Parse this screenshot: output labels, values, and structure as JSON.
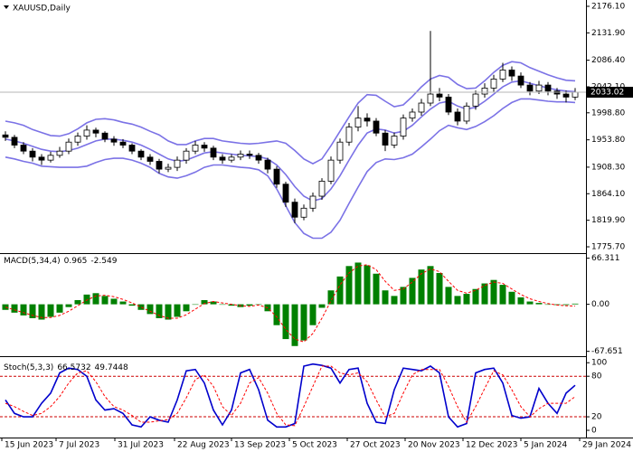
{
  "chart_data": [
    {
      "type": "candlestick",
      "title": "XAUUSD,Daily",
      "x": [
        0,
        1,
        2,
        3,
        4,
        5,
        6,
        7,
        8,
        9,
        10,
        11,
        12,
        13,
        14,
        15,
        16,
        17,
        18,
        19,
        20,
        21,
        22,
        23,
        24,
        25,
        26,
        27,
        28,
        29,
        30,
        31,
        32,
        33,
        34,
        35,
        36,
        37,
        38,
        39,
        40,
        41,
        42,
        43,
        44,
        45,
        46,
        47,
        48,
        49,
        50,
        51,
        52,
        53,
        54,
        55,
        56,
        57,
        58,
        59,
        60,
        61,
        62,
        63
      ],
      "xlim": [
        -0.6,
        64.2
      ],
      "open": [
        1962,
        1958,
        1945,
        1935,
        1925,
        1920,
        1928,
        1935,
        1950,
        1960,
        1970,
        1965,
        1955,
        1950,
        1945,
        1935,
        1925,
        1918,
        1905,
        1908,
        1920,
        1935,
        1945,
        1940,
        1925,
        1920,
        1925,
        1930,
        1928,
        1920,
        1905,
        1880,
        1850,
        1825,
        1840,
        1860,
        1885,
        1920,
        1950,
        1975,
        1990,
        1985,
        1965,
        1945,
        1960,
        1990,
        2000,
        2015,
        2030,
        2025,
        2000,
        1985,
        2010,
        2030,
        2040,
        2055,
        2070,
        2060,
        2045,
        2035,
        2045,
        2035,
        2030,
        2025
      ],
      "high": [
        1968,
        1962,
        1950,
        1940,
        1930,
        1934,
        1942,
        1956,
        1966,
        1978,
        1974,
        1968,
        1960,
        1955,
        1948,
        1938,
        1930,
        1922,
        1914,
        1926,
        1940,
        1952,
        1950,
        1944,
        1930,
        1930,
        1936,
        1936,
        1932,
        1924,
        1910,
        1884,
        1856,
        1846,
        1866,
        1890,
        1926,
        1956,
        1982,
        2010,
        1998,
        1990,
        1970,
        1966,
        1996,
        2006,
        2022,
        2135,
        2040,
        2030,
        2006,
        2016,
        2036,
        2048,
        2062,
        2082,
        2076,
        2066,
        2050,
        2052,
        2050,
        2040,
        2036,
        2040
      ],
      "low": [
        1952,
        1940,
        1930,
        1918,
        1912,
        1916,
        1924,
        1930,
        1944,
        1954,
        1958,
        1950,
        1944,
        1940,
        1930,
        1920,
        1912,
        1898,
        1900,
        1902,
        1914,
        1930,
        1934,
        1920,
        1914,
        1916,
        1920,
        1922,
        1914,
        1898,
        1874,
        1842,
        1815,
        1820,
        1834,
        1854,
        1880,
        1914,
        1944,
        1968,
        1976,
        1960,
        1935,
        1940,
        1954,
        1984,
        1994,
        2010,
        2018,
        1995,
        1978,
        1980,
        2004,
        2024,
        2034,
        2050,
        2052,
        2040,
        2028,
        2030,
        2028,
        2022,
        2016,
        2020
      ],
      "close": [
        1958,
        1945,
        1935,
        1925,
        1920,
        1928,
        1935,
        1950,
        1960,
        1970,
        1965,
        1955,
        1950,
        1945,
        1935,
        1925,
        1918,
        1905,
        1908,
        1920,
        1935,
        1945,
        1940,
        1925,
        1920,
        1925,
        1930,
        1928,
        1920,
        1905,
        1880,
        1850,
        1825,
        1840,
        1860,
        1885,
        1920,
        1950,
        1975,
        1990,
        1985,
        1965,
        1945,
        1960,
        1990,
        2000,
        2015,
        2030,
        2025,
        2000,
        1985,
        2010,
        2030,
        2040,
        2055,
        2070,
        2060,
        2045,
        2035,
        2045,
        2035,
        2030,
        2025,
        2033.02
      ],
      "up_color": "#ffffff",
      "down_color": "#000000",
      "price_line_color": "#b4b4b4",
      "series": [
        {
          "color": "#7b72e6",
          "values": [
            1985,
            1982,
            1978,
            1971,
            1966,
            1961,
            1960,
            1964,
            1972,
            1982,
            1988,
            1989,
            1987,
            1983,
            1980,
            1975,
            1968,
            1962,
            1952,
            1946,
            1946,
            1952,
            1956,
            1956,
            1952,
            1950,
            1948,
            1947,
            1948,
            1950,
            1952,
            1948,
            1936,
            1922,
            1914,
            1922,
            1944,
            1968,
            1992,
            2015,
            2029,
            2028,
            2018,
            2009,
            2012,
            2026,
            2042,
            2055,
            2061,
            2058,
            2046,
            2039,
            2040,
            2052,
            2066,
            2078,
            2084,
            2082,
            2074,
            2068,
            2062,
            2057,
            2053,
            2052
          ]
        },
        {
          "color": "#7b72e6",
          "values": [
            1955,
            1952,
            1948,
            1943,
            1938,
            1935,
            1934,
            1936,
            1940,
            1946,
            1952,
            1955,
            1955,
            1953,
            1950,
            1945,
            1938,
            1930,
            1922,
            1918,
            1920,
            1926,
            1932,
            1934,
            1932,
            1930,
            1928,
            1927,
            1926,
            1922,
            1912,
            1896,
            1876,
            1860,
            1852,
            1856,
            1872,
            1894,
            1920,
            1945,
            1965,
            1972,
            1970,
            1965,
            1968,
            1978,
            1992,
            2005,
            2015,
            2018,
            2010,
            2005,
            2008,
            2018,
            2030,
            2042,
            2050,
            2052,
            2048,
            2044,
            2040,
            2037,
            2035,
            2034
          ]
        },
        {
          "color": "#7b72e6",
          "values": [
            1925,
            1922,
            1918,
            1915,
            1910,
            1909,
            1908,
            1908,
            1908,
            1910,
            1916,
            1921,
            1923,
            1923,
            1920,
            1915,
            1908,
            1898,
            1892,
            1890,
            1894,
            1900,
            1908,
            1912,
            1912,
            1910,
            1908,
            1907,
            1904,
            1894,
            1872,
            1844,
            1816,
            1798,
            1790,
            1790,
            1800,
            1820,
            1848,
            1875,
            1901,
            1916,
            1922,
            1921,
            1924,
            1930,
            1942,
            1955,
            1969,
            1978,
            1974,
            1971,
            1976,
            1984,
            1994,
            2006,
            2016,
            2022,
            2022,
            2020,
            2018,
            2017,
            2017,
            2016
          ]
        }
      ],
      "ylim": [
        1768.2,
        2183.6
      ],
      "yticks": [
        {
          "value": 2176.1,
          "label": "2176.10"
        },
        {
          "value": 2131.9,
          "label": "2131.90"
        },
        {
          "value": 2086.4,
          "label": "2086.40"
        },
        {
          "value": 2042.1,
          "label": "2042.10"
        },
        {
          "value": 1998.8,
          "label": "1998.80"
        },
        {
          "value": 1953.8,
          "label": "1953.80"
        },
        {
          "value": 1908.3,
          "label": "1908.30"
        },
        {
          "value": 1864.1,
          "label": "1864.10"
        },
        {
          "value": 1819.9,
          "label": "1819.90"
        },
        {
          "value": 1775.7,
          "label": "1775.70"
        }
      ]
    },
    {
      "type": "bar",
      "title": "MACD(5,34,4)",
      "color": "#008000",
      "values": [
        -8,
        -12,
        -16,
        -20,
        -22,
        -18,
        -12,
        -4,
        6,
        14,
        16,
        12,
        8,
        4,
        -2,
        -8,
        -14,
        -20,
        -22,
        -18,
        -10,
        0,
        6,
        4,
        0,
        -2,
        -4,
        -2,
        0,
        -10,
        -30,
        -50,
        -60,
        -52,
        -30,
        -5,
        20,
        40,
        55,
        60,
        56,
        44,
        20,
        12,
        25,
        38,
        50,
        55,
        45,
        25,
        12,
        15,
        22,
        30,
        35,
        28,
        18,
        10,
        4,
        2,
        0,
        -1,
        -1,
        0.965
      ],
      "signal": {
        "color": "#ff0000",
        "dash": true,
        "values": [
          -4,
          -8,
          -12,
          -16,
          -19,
          -19,
          -16,
          -10,
          -2,
          6,
          12,
          13,
          11,
          7,
          2,
          -4,
          -10,
          -16,
          -20,
          -20,
          -15,
          -7,
          1,
          4,
          2,
          0,
          -2,
          -3,
          -1,
          -5,
          -18,
          -36,
          -50,
          -54,
          -42,
          -20,
          5,
          28,
          45,
          55,
          57,
          50,
          33,
          20,
          22,
          32,
          44,
          51,
          47,
          33,
          20,
          16,
          20,
          27,
          32,
          30,
          22,
          14,
          8,
          4,
          1,
          -1,
          -2,
          -2.549
        ]
      },
      "ylim": [
        -72,
        71
      ],
      "yticks": [
        66.311,
        {
          "value": 0,
          "label": "0.00"
        },
        -67.651
      ]
    },
    {
      "type": "line",
      "title": "Stoch(5,3,3)",
      "series": [
        {
          "color": "#0000cc",
          "values": [
            45,
            25,
            20,
            20,
            40,
            55,
            85,
            92,
            90,
            80,
            45,
            30,
            32,
            25,
            8,
            5,
            20,
            15,
            12,
            45,
            88,
            90,
            70,
            30,
            8,
            30,
            85,
            90,
            60,
            15,
            5,
            5,
            10,
            95,
            98,
            96,
            92,
            70,
            90,
            92,
            40,
            12,
            10,
            60,
            92,
            90,
            88,
            95,
            85,
            20,
            5,
            10,
            85,
            90,
            92,
            70,
            22,
            18,
            20,
            62,
            40,
            25,
            55,
            66.5732
          ]
        },
        {
          "color": "#ff0000",
          "dash": true,
          "values": [
            40,
            35,
            28,
            22,
            25,
            35,
            50,
            70,
            85,
            88,
            72,
            50,
            35,
            30,
            22,
            12,
            12,
            14,
            16,
            25,
            48,
            75,
            82,
            65,
            35,
            22,
            40,
            70,
            78,
            55,
            25,
            8,
            7,
            35,
            65,
            95,
            95,
            85,
            82,
            85,
            72,
            45,
            20,
            25,
            55,
            82,
            90,
            90,
            90,
            65,
            35,
            12,
            35,
            62,
            88,
            82,
            60,
            35,
            20,
            32,
            40,
            40,
            40,
            49.7448
          ]
        }
      ],
      "levels": [
        80,
        20
      ],
      "level_color": "#cc0000",
      "ylim": [
        -8,
        107
      ],
      "yticks": [
        100,
        80,
        20,
        0
      ],
      "xticks": [
        {
          "value": -0.4,
          "label": "15 Jun 2023"
        },
        {
          "value": 5.6,
          "label": "7 Jul 2023"
        },
        {
          "value": 12.1,
          "label": "31 Jul 2023"
        },
        {
          "value": 18.7,
          "label": "22 Aug 2023"
        },
        {
          "value": 25,
          "label": "13 Sep 2023"
        },
        {
          "value": 31.4,
          "label": "5 Oct 2023"
        },
        {
          "value": 37.8,
          "label": "27 Oct 2023"
        },
        {
          "value": 44.2,
          "label": "20 Nov 2023"
        },
        {
          "value": 50.6,
          "label": "12 Dec 2023"
        },
        {
          "value": 57,
          "label": "5 Jan 2024"
        },
        {
          "value": 63.5,
          "label": "29 Jan 2024"
        }
      ]
    }
  ]
}
